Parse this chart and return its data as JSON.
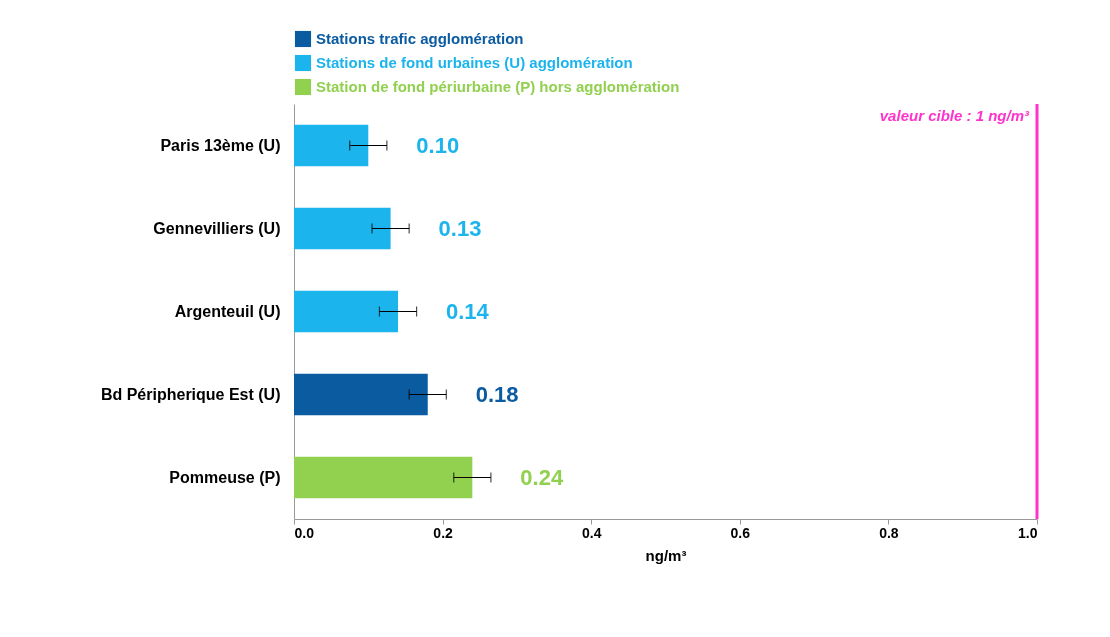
{
  "chart_data": {
    "type": "bar",
    "orientation": "horizontal",
    "xlabel": "ng/m³",
    "categories": [
      "Paris 13ème (U)",
      "Gennevilliers (U)",
      "Argenteuil (U)",
      "Bd Péripherique Est (U)",
      "Pommeuse (P)"
    ],
    "series": [
      {
        "name": "Stations trafic agglomération",
        "color": "#0b5ba1",
        "values": [
          null,
          null,
          null,
          0.18,
          null
        ],
        "value_labels": [
          null,
          null,
          null,
          "0.18",
          null
        ],
        "errors": [
          null,
          null,
          null,
          0.025,
          null
        ]
      },
      {
        "name": "Stations de fond urbaines (U) agglomération",
        "color": "#1cb4ec",
        "values": [
          0.1,
          0.13,
          0.14,
          null,
          null
        ],
        "value_labels": [
          "0.10",
          "0.13",
          "0.14",
          null,
          null
        ],
        "errors": [
          0.025,
          0.025,
          0.025,
          null,
          null
        ]
      },
      {
        "name": "Station de fond périurbaine (P) hors agglomération",
        "color": "#92d050",
        "values": [
          null,
          null,
          null,
          null,
          0.24
        ],
        "value_labels": [
          null,
          null,
          null,
          null,
          "0.24"
        ],
        "errors": [
          null,
          null,
          null,
          null,
          0.025
        ]
      }
    ],
    "xlim": [
      0,
      1
    ],
    "xticks": [
      {
        "value": 0,
        "label": "0.0"
      },
      {
        "value": 0.2,
        "label": "0.2"
      },
      {
        "value": 0.4,
        "label": "0.4"
      },
      {
        "value": 0.6,
        "label": "0.6"
      },
      {
        "value": 0.8,
        "label": "0.8"
      },
      {
        "value": 1,
        "label": "1.0"
      }
    ],
    "ref_lines": [
      {
        "axis": "x",
        "value": 1,
        "label": "valeur cible : 1 ng/m³",
        "color": "#ff33cc"
      }
    ],
    "legend": "top",
    "grid": false
  }
}
